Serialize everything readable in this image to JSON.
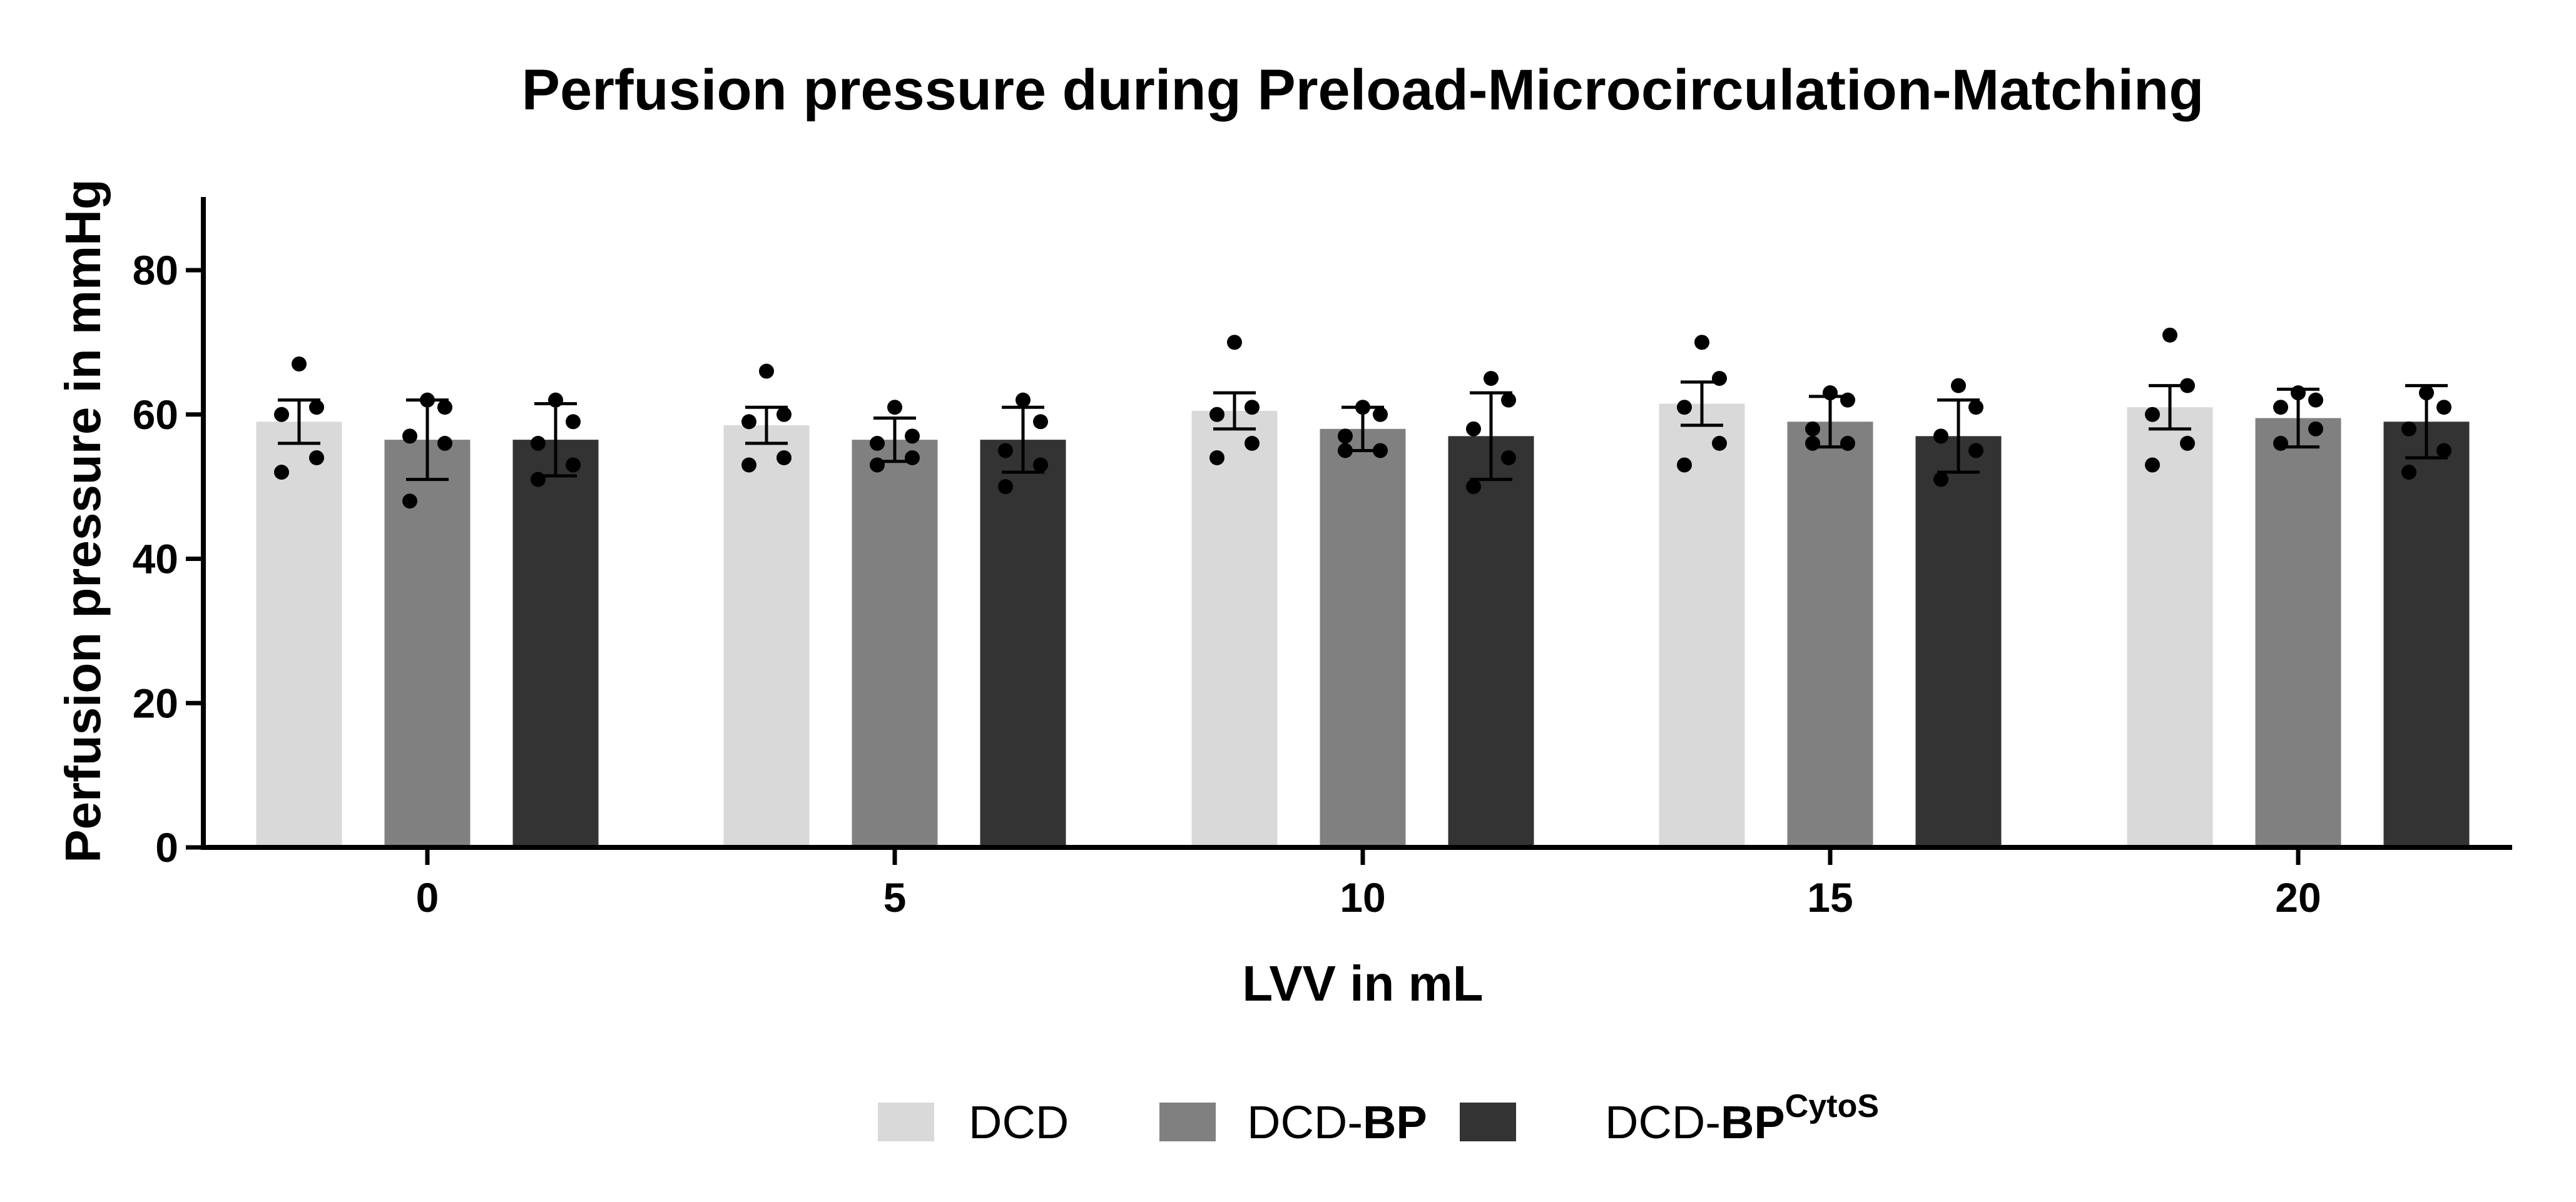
{
  "chart_data": {
    "type": "bar",
    "title": "Perfusion pressure during Preload-Microcirculation-Matching",
    "xlabel": "LVV in mL",
    "ylabel": "Perfusion pressure in mmHg",
    "ylim": [
      0,
      90
    ],
    "yticks": [
      "0",
      "20",
      "40",
      "60",
      "80"
    ],
    "categories": [
      "0",
      "5",
      "10",
      "15",
      "20"
    ],
    "grid": false,
    "legend_position": "bottom",
    "series": [
      {
        "name": "DCD",
        "color": "#d9d9d9",
        "values": [
          59,
          58.5,
          60.5,
          61.5,
          61
        ],
        "error": [
          3,
          2.5,
          2.5,
          3,
          3
        ],
        "points": [
          [
            67,
            61,
            60,
            54,
            52
          ],
          [
            66,
            60,
            59,
            54,
            53
          ],
          [
            70,
            61,
            60,
            56,
            54
          ],
          [
            70,
            65,
            61,
            56,
            53
          ],
          [
            71,
            64,
            60,
            56,
            53
          ]
        ]
      },
      {
        "name": "DCD-BP",
        "name_prefix": "DCD-",
        "name_bold": "BP",
        "color": "#808080",
        "values": [
          56.5,
          56.5,
          58,
          59,
          59.5
        ],
        "error": [
          5.5,
          3,
          3,
          3.5,
          4
        ],
        "points": [
          [
            62,
            61,
            57,
            56,
            48
          ],
          [
            61,
            57,
            56,
            54,
            53
          ],
          [
            61,
            60,
            57,
            55,
            55
          ],
          [
            63,
            62,
            58,
            56,
            56
          ],
          [
            63,
            62,
            61,
            58,
            56
          ]
        ]
      },
      {
        "name": "DCD-BPCytoS",
        "name_prefix": "DCD-",
        "name_bold": "BP",
        "name_superscript": "CytoS",
        "color": "#333333",
        "values": [
          56.5,
          56.5,
          57,
          57,
          59
        ],
        "error": [
          5,
          4.5,
          6,
          5,
          5
        ],
        "points": [
          [
            62,
            59,
            56,
            53,
            51
          ],
          [
            62,
            59,
            55,
            53,
            50
          ],
          [
            65,
            62,
            58,
            54,
            50
          ],
          [
            64,
            61,
            57,
            55,
            51
          ],
          [
            63,
            61,
            58,
            55,
            52
          ]
        ]
      }
    ]
  }
}
